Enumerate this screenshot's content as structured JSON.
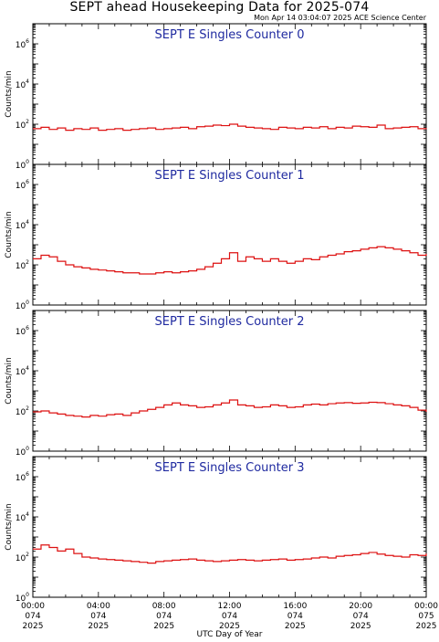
{
  "title": "SEPT ahead Housekeeping Data for 2025-074",
  "timestamp": "Mon Apr 14 03:04:07 2025 ACE Science Center",
  "xlabel": "UTC Day of Year",
  "colors": {
    "series": "#dd1111",
    "title": "#1f2aa0",
    "axis": "#000000"
  },
  "chart_data": [
    {
      "type": "line",
      "title": "SEPT E Singles Counter 0",
      "ylabel": "Counts/min",
      "yscale": "log",
      "ylim": [
        1,
        10000000
      ],
      "yticks": [
        {
          "label": "10",
          "exp": "0",
          "value": 1
        },
        {
          "label": "10",
          "exp": "2",
          "value": 100
        },
        {
          "label": "10",
          "exp": "4",
          "value": 10000
        },
        {
          "label": "10",
          "exp": "6",
          "value": 1000000
        }
      ],
      "x_hours": [
        0,
        0.5,
        1,
        1.5,
        2,
        2.5,
        3,
        3.5,
        4,
        4.5,
        5,
        5.5,
        6,
        6.5,
        7,
        7.5,
        8,
        8.5,
        9,
        9.5,
        10,
        10.5,
        11,
        11.5,
        12,
        12.5,
        13,
        13.5,
        14,
        14.5,
        15,
        15.5,
        16,
        16.5,
        17,
        17.5,
        18,
        18.5,
        19,
        19.5,
        20,
        20.5,
        21,
        21.5,
        22,
        22.5,
        23,
        23.5,
        24
      ],
      "values": [
        60,
        70,
        55,
        65,
        50,
        60,
        55,
        65,
        50,
        55,
        60,
        50,
        55,
        60,
        65,
        55,
        60,
        65,
        70,
        60,
        75,
        80,
        90,
        85,
        100,
        80,
        70,
        65,
        60,
        55,
        70,
        65,
        60,
        70,
        65,
        75,
        60,
        70,
        65,
        80,
        75,
        70,
        90,
        60,
        65,
        70,
        75,
        60,
        65
      ]
    },
    {
      "type": "line",
      "title": "SEPT E Singles Counter 1",
      "ylabel": "Counts/min",
      "yscale": "log",
      "ylim": [
        1,
        10000000
      ],
      "yticks": [
        {
          "label": "10",
          "exp": "0",
          "value": 1
        },
        {
          "label": "10",
          "exp": "2",
          "value": 100
        },
        {
          "label": "10",
          "exp": "4",
          "value": 10000
        },
        {
          "label": "10",
          "exp": "6",
          "value": 1000000
        }
      ],
      "x_hours": [
        0,
        0.5,
        1,
        1.5,
        2,
        2.5,
        3,
        3.5,
        4,
        4.5,
        5,
        5.5,
        6,
        6.5,
        7,
        7.5,
        8,
        8.5,
        9,
        9.5,
        10,
        10.5,
        11,
        11.5,
        12,
        12.5,
        13,
        13.5,
        14,
        14.5,
        15,
        15.5,
        16,
        16.5,
        17,
        17.5,
        18,
        18.5,
        19,
        19.5,
        20,
        20.5,
        21,
        21.5,
        22,
        22.5,
        23,
        23.5,
        24
      ],
      "values": [
        200,
        300,
        250,
        150,
        100,
        80,
        70,
        60,
        55,
        50,
        45,
        40,
        40,
        35,
        35,
        40,
        45,
        40,
        45,
        50,
        60,
        80,
        120,
        200,
        400,
        150,
        250,
        200,
        150,
        200,
        150,
        120,
        150,
        200,
        180,
        250,
        300,
        350,
        450,
        500,
        600,
        700,
        800,
        700,
        600,
        500,
        400,
        300,
        350
      ]
    },
    {
      "type": "line",
      "title": "SEPT E Singles Counter 2",
      "ylabel": "Counts/min",
      "yscale": "log",
      "ylim": [
        1,
        10000000
      ],
      "yticks": [
        {
          "label": "10",
          "exp": "0",
          "value": 1
        },
        {
          "label": "10",
          "exp": "2",
          "value": 100
        },
        {
          "label": "10",
          "exp": "4",
          "value": 10000
        },
        {
          "label": "10",
          "exp": "6",
          "value": 1000000
        }
      ],
      "x_hours": [
        0,
        0.5,
        1,
        1.5,
        2,
        2.5,
        3,
        3.5,
        4,
        4.5,
        5,
        5.5,
        6,
        6.5,
        7,
        7.5,
        8,
        8.5,
        9,
        9.5,
        10,
        10.5,
        11,
        11.5,
        12,
        12.5,
        13,
        13.5,
        14,
        14.5,
        15,
        15.5,
        16,
        16.5,
        17,
        17.5,
        18,
        18.5,
        19,
        19.5,
        20,
        20.5,
        21,
        21.5,
        22,
        22.5,
        23,
        23.5,
        24
      ],
      "values": [
        90,
        100,
        80,
        70,
        60,
        55,
        50,
        60,
        55,
        65,
        70,
        60,
        80,
        100,
        120,
        150,
        200,
        250,
        200,
        180,
        150,
        160,
        200,
        250,
        350,
        200,
        180,
        150,
        160,
        200,
        180,
        150,
        160,
        200,
        220,
        200,
        230,
        250,
        260,
        240,
        250,
        270,
        260,
        230,
        200,
        180,
        150,
        110,
        90
      ]
    },
    {
      "type": "line",
      "title": "SEPT E Singles Counter 3",
      "ylabel": "Counts/min",
      "yscale": "log",
      "ylim": [
        1,
        10000000
      ],
      "yticks": [
        {
          "label": "10",
          "exp": "0",
          "value": 1
        },
        {
          "label": "10",
          "exp": "2",
          "value": 100
        },
        {
          "label": "10",
          "exp": "4",
          "value": 10000
        },
        {
          "label": "10",
          "exp": "6",
          "value": 1000000
        }
      ],
      "x_hours": [
        0,
        0.5,
        1,
        1.5,
        2,
        2.5,
        3,
        3.5,
        4,
        4.5,
        5,
        5.5,
        6,
        6.5,
        7,
        7.5,
        8,
        8.5,
        9,
        9.5,
        10,
        10.5,
        11,
        11.5,
        12,
        12.5,
        13,
        13.5,
        14,
        14.5,
        15,
        15.5,
        16,
        16.5,
        17,
        17.5,
        18,
        18.5,
        19,
        19.5,
        20,
        20.5,
        21,
        21.5,
        22,
        22.5,
        23,
        23.5,
        24
      ],
      "values": [
        250,
        400,
        300,
        200,
        250,
        150,
        100,
        90,
        80,
        75,
        70,
        65,
        60,
        55,
        50,
        60,
        65,
        70,
        75,
        80,
        70,
        65,
        60,
        65,
        70,
        75,
        70,
        65,
        70,
        75,
        80,
        70,
        75,
        80,
        90,
        100,
        90,
        110,
        120,
        130,
        150,
        170,
        140,
        120,
        110,
        100,
        130,
        120,
        150
      ]
    }
  ],
  "xticks": [
    {
      "hour": 0,
      "time": "00:00",
      "doy": "074",
      "year": "2025"
    },
    {
      "hour": 4,
      "time": "04:00",
      "doy": "074",
      "year": "2025"
    },
    {
      "hour": 8,
      "time": "08:00",
      "doy": "074",
      "year": "2025"
    },
    {
      "hour": 12,
      "time": "12:00",
      "doy": "074",
      "year": "2025"
    },
    {
      "hour": 16,
      "time": "16:00",
      "doy": "074",
      "year": "2025"
    },
    {
      "hour": 20,
      "time": "20:00",
      "doy": "074",
      "year": "2025"
    },
    {
      "hour": 24,
      "time": "00:00",
      "doy": "075",
      "year": "2025"
    }
  ]
}
